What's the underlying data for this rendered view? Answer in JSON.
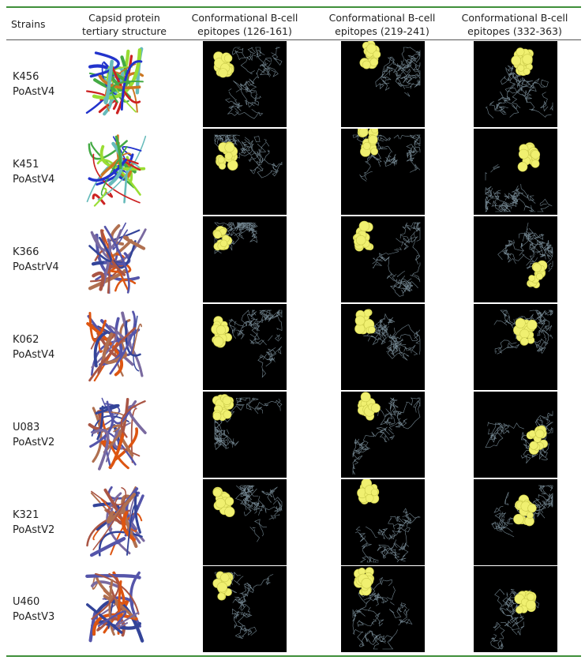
{
  "table": {
    "headers": [
      "Strains",
      "Capsid protein tertiary structure",
      "Conformational B-cell epitopes (126-161)",
      "Conformational B-cell epitopes (219-241)",
      "Conformational B-cell epitopes (332-363)"
    ],
    "rows": [
      {
        "strain": "K456",
        "type": "PoAstV4"
      },
      {
        "strain": "K451",
        "type": "PoAstV4"
      },
      {
        "strain": "K366",
        "type": "PoAstrV4"
      },
      {
        "strain": "K062",
        "type": "PoAstV4"
      },
      {
        "strain": "U083",
        "type": "PoAstV2"
      },
      {
        "strain": "K321",
        "type": "PoAstV2"
      },
      {
        "strain": "U460",
        "type": "PoAstV3"
      }
    ]
  }
}
